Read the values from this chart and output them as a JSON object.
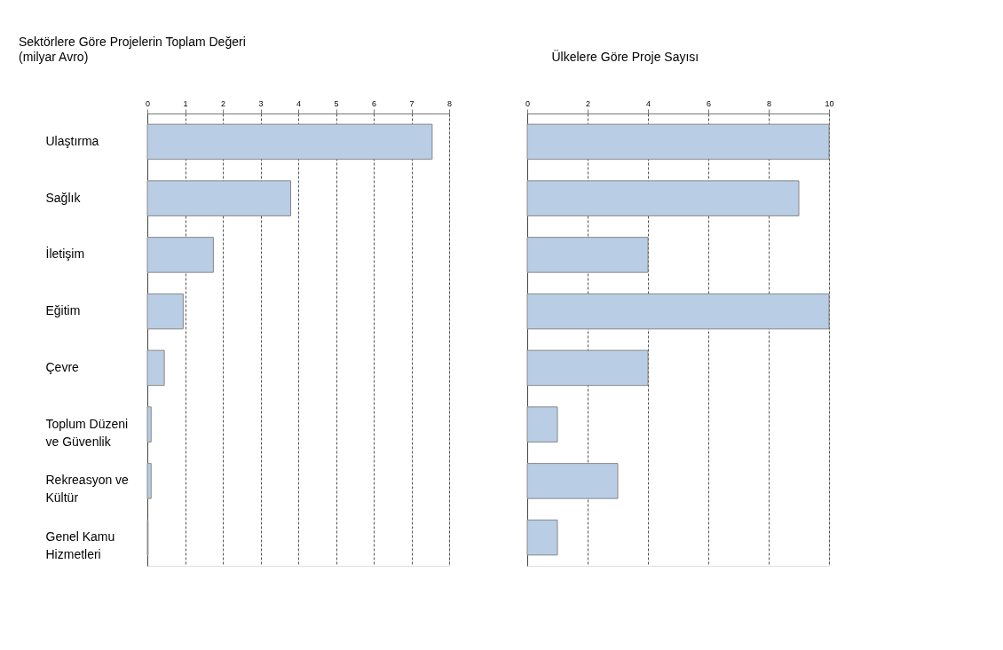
{
  "chart_data": [
    {
      "type": "bar",
      "orientation": "horizontal",
      "title": "Sektörlere Göre Projelerin Toplam Değeri",
      "subtitle": "(milyar Avro)",
      "categories": [
        "Ulaştırma",
        "Sağlık",
        "İletişim",
        "Eğitim",
        "Çevre",
        "Toplum Düzeni\nve Güvenlik",
        "Rekreasyon ve\nKültür",
        "Genel Kamu\nHizmetleri"
      ],
      "values": [
        7.55,
        3.8,
        1.75,
        0.95,
        0.45,
        0.1,
        0.1,
        0.02
      ],
      "color": "#b9cde5",
      "xlim": [
        0,
        8
      ],
      "xticks": [
        0,
        1,
        2,
        3,
        4,
        5,
        6,
        7,
        8
      ],
      "grid": "x"
    },
    {
      "type": "bar",
      "orientation": "horizontal",
      "title": "Ülkelere Göre Proje Sayısı",
      "categories": [
        null,
        null,
        null,
        null,
        null,
        null,
        null,
        null
      ],
      "values": [
        10,
        9,
        4,
        10,
        4,
        1,
        3,
        1
      ],
      "color": "#b9cde5",
      "xlim": [
        0,
        10
      ],
      "xticks": [
        0,
        2,
        4,
        6,
        8,
        10
      ],
      "grid": "x",
      "tick_labels": "x"
    }
  ]
}
